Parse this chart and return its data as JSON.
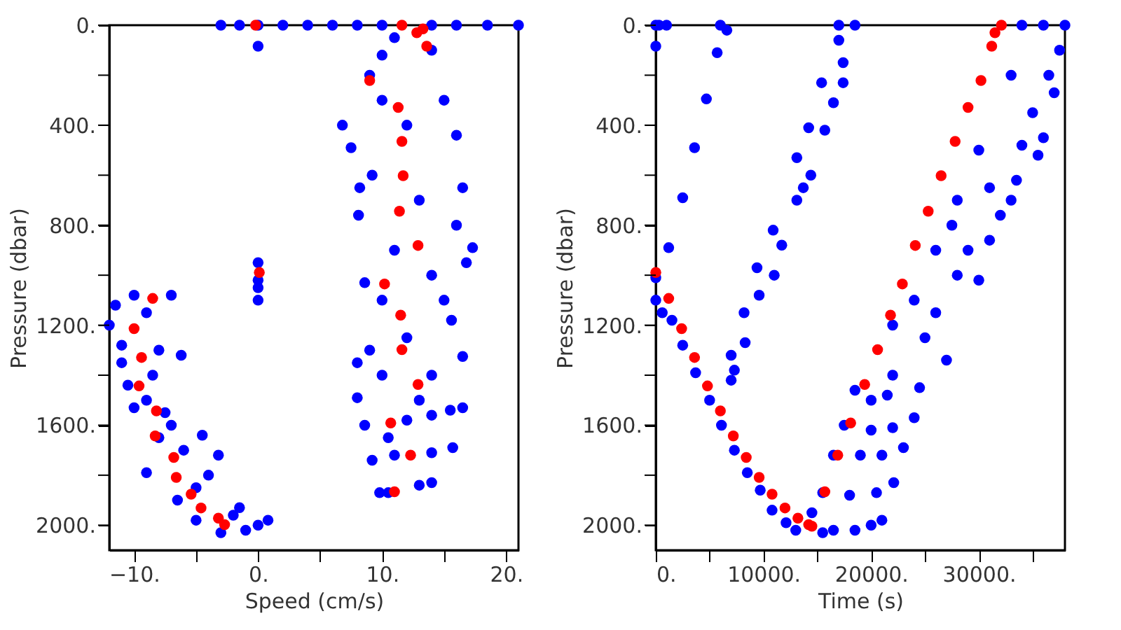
{
  "chart_data": [
    {
      "type": "scatter",
      "xlabel": "Speed (cm/s)",
      "ylabel": "Pressure (dbar)",
      "marker": "circle",
      "grid": false,
      "xlim": [
        -12,
        21
      ],
      "xticks": [
        {
          "value": -10,
          "label": "−10."
        },
        {
          "value": -5,
          "label": null
        },
        {
          "value": 0,
          "label": "0."
        },
        {
          "value": 5,
          "label": null
        },
        {
          "value": 10,
          "label": "10."
        },
        {
          "value": 15,
          "label": null
        },
        {
          "value": 20,
          "label": "20."
        }
      ],
      "ylim": [
        2100,
        0
      ],
      "yticks": [
        {
          "value": 0,
          "label": "0."
        },
        {
          "value": 200,
          "label": null
        },
        {
          "value": 400,
          "label": "400."
        },
        {
          "value": 600,
          "label": null
        },
        {
          "value": 800,
          "label": "800."
        },
        {
          "value": 1000,
          "label": null
        },
        {
          "value": 1200,
          "label": "1200."
        },
        {
          "value": 1400,
          "label": null
        },
        {
          "value": 1600,
          "label": "1600."
        },
        {
          "value": 1800,
          "label": null
        },
        {
          "value": 2000,
          "label": "2000."
        }
      ],
      "series": [
        {
          "color": "#0000ff",
          "x": [
            -3,
            -1.5,
            0,
            2,
            4,
            6,
            8,
            10,
            14,
            16,
            18.5,
            21,
            0,
            6.8,
            7.5,
            8.2,
            8.1,
            9,
            10,
            9.2,
            8.6,
            8,
            8,
            8.6,
            9.2,
            9.8,
            10.5,
            13,
            14,
            12,
            14,
            15.5,
            16.5,
            11,
            14,
            15.7,
            16.5,
            15.6,
            17.3,
            16.8,
            16,
            16,
            16.5,
            15,
            14,
            11,
            12,
            13,
            14,
            12,
            10,
            11,
            14,
            13,
            10.5,
            10,
            15,
            9,
            10,
            0,
            0,
            0,
            0,
            -12,
            -11.5,
            -11,
            -10,
            -7,
            -11,
            -10.5,
            -9,
            -8,
            -6.2,
            -7.5,
            -10,
            -9,
            -8,
            -6,
            -4.5,
            -3.2,
            -5,
            -6.5,
            -5,
            -3,
            -1.5,
            0,
            0.8,
            -1,
            -7,
            -4,
            -2,
            -8.5,
            -9
          ],
          "values": [
            0,
            0,
            0,
            0,
            0,
            0,
            0,
            0,
            0,
            0,
            0,
            0,
            84,
            400,
            490,
            650,
            760,
            200,
            120,
            600,
            1030,
            1350,
            1490,
            1600,
            1740,
            1870,
            1870,
            1840,
            1830,
            1580,
            1560,
            1540,
            1530,
            1720,
            1710,
            1690,
            1325,
            1180,
            890,
            950,
            800,
            440,
            650,
            300,
            100,
            50,
            400,
            700,
            1000,
            1250,
            1400,
            900,
            1400,
            1500,
            1650,
            300,
            1100,
            1300,
            1100,
            950,
            1020,
            1050,
            1100,
            1200,
            1120,
            1280,
            1080,
            1080,
            1350,
            1440,
            1500,
            1300,
            1320,
            1550,
            1530,
            1790,
            1650,
            1700,
            1640,
            1720,
            1850,
            1900,
            1980,
            2030,
            1930,
            2000,
            1980,
            2020,
            1600,
            1800,
            1960,
            1400,
            1150
          ]
        },
        {
          "color": "#ff0000",
          "x": [
            -0.2,
            11.6,
            12.8,
            13.3,
            13.6,
            9.0,
            11.3,
            11.6,
            11.7,
            11.4,
            12.9,
            10.2,
            11.5,
            11.6,
            12.9,
            10.7,
            12.3,
            11.0,
            0.1,
            -8.5,
            -10.0,
            -9.4,
            -9.6,
            -8.2,
            -8.3,
            -6.8,
            -6.6,
            -5.4,
            -4.6,
            -3.2,
            -2.7
          ],
          "values": [
            0,
            0,
            30,
            15,
            84,
            221,
            329,
            465,
            602,
            744,
            881,
            1035,
            1160,
            1298,
            1437,
            1591,
            1720,
            1866,
            989,
            1093,
            1214,
            1329,
            1443,
            1543,
            1643,
            1729,
            1809,
            1876,
            1931,
            1972,
            1998
          ]
        }
      ]
    },
    {
      "type": "scatter",
      "xlabel": "Time (s)",
      "ylabel": "Pressure (dbar)",
      "marker": "circle",
      "grid": false,
      "xlim": [
        0,
        38000
      ],
      "xticks": [
        {
          "value": 0,
          "label": "0."
        },
        {
          "value": 5000,
          "label": null
        },
        {
          "value": 10000,
          "label": "10000."
        },
        {
          "value": 15000,
          "label": null
        },
        {
          "value": 20000,
          "label": "20000."
        },
        {
          "value": 25000,
          "label": null
        },
        {
          "value": 30000,
          "label": "30000."
        },
        {
          "value": 35000,
          "label": null
        }
      ],
      "ylim": [
        2100,
        0
      ],
      "yticks": [
        {
          "value": 0,
          "label": "0."
        },
        {
          "value": 200,
          "label": null
        },
        {
          "value": 400,
          "label": "400."
        },
        {
          "value": 600,
          "label": null
        },
        {
          "value": 800,
          "label": "800."
        },
        {
          "value": 1000,
          "label": null
        },
        {
          "value": 1200,
          "label": "1200."
        },
        {
          "value": 1400,
          "label": null
        },
        {
          "value": 1600,
          "label": "1600."
        },
        {
          "value": 1800,
          "label": null
        },
        {
          "value": 2000,
          "label": "2000."
        }
      ],
      "series": [
        {
          "color": "#0000ff",
          "x": [
            0,
            300,
            1000,
            0,
            6000,
            6600,
            5700,
            4700,
            3600,
            2500,
            1200,
            0,
            0,
            17000,
            18500,
            17000,
            17400,
            17400,
            16500,
            15400,
            15700,
            14200,
            14400,
            13100,
            13700,
            13100,
            11700,
            10900,
            11000,
            9400,
            9600,
            8200,
            8300,
            7000,
            7300,
            7000,
            600,
            1500,
            2500,
            3700,
            5000,
            6100,
            7300,
            8500,
            9700,
            10800,
            12100,
            13000,
            14500,
            15500,
            16500,
            18500,
            20000,
            21000,
            15500,
            18000,
            20500,
            22100,
            16500,
            19000,
            21000,
            23000,
            17500,
            20000,
            22000,
            24000,
            18500,
            21500,
            24500,
            22000,
            25000,
            27000,
            26000,
            28000,
            30000,
            29000,
            27500,
            31000,
            32000,
            33000,
            31000,
            33500,
            34000,
            35500,
            36000,
            35000,
            37000,
            36500,
            37500,
            38000,
            36000,
            34000,
            33000,
            30000,
            28000,
            26000,
            24000,
            22000,
            20000
          ],
          "values": [
            0,
            0,
            0,
            84,
            0,
            20,
            110,
            295,
            490,
            690,
            890,
            1010,
            1100,
            0,
            0,
            60,
            150,
            230,
            310,
            230,
            420,
            410,
            600,
            530,
            650,
            700,
            880,
            820,
            1000,
            970,
            1080,
            1150,
            1270,
            1320,
            1380,
            1420,
            1150,
            1180,
            1280,
            1390,
            1500,
            1600,
            1700,
            1790,
            1860,
            1940,
            1990,
            2020,
            1950,
            2030,
            2020,
            2020,
            2000,
            1980,
            1870,
            1880,
            1870,
            1830,
            1720,
            1720,
            1720,
            1690,
            1600,
            1620,
            1610,
            1570,
            1460,
            1480,
            1450,
            1200,
            1250,
            1340,
            1150,
            1000,
            1020,
            900,
            800,
            860,
            760,
            700,
            650,
            620,
            480,
            520,
            450,
            350,
            270,
            200,
            100,
            0,
            0,
            0,
            200,
            500,
            700,
            900,
            1100,
            1400,
            1500
          ]
        },
        {
          "color": "#ff0000",
          "x": [
            0,
            1200,
            2400,
            3600,
            4800,
            6000,
            7200,
            8400,
            9600,
            10800,
            12000,
            13200,
            14200,
            14500,
            15700,
            16900,
            18100,
            19400,
            20600,
            21800,
            22900,
            24100,
            25300,
            26500,
            27800,
            29000,
            30200,
            31200,
            31500,
            32100
          ],
          "values": [
            989,
            1093,
            1214,
            1329,
            1443,
            1543,
            1643,
            1729,
            1809,
            1876,
            1931,
            1972,
            1998,
            2004,
            1866,
            1720,
            1591,
            1437,
            1298,
            1160,
            1035,
            881,
            744,
            602,
            465,
            329,
            221,
            84,
            30,
            0
          ]
        }
      ]
    }
  ]
}
